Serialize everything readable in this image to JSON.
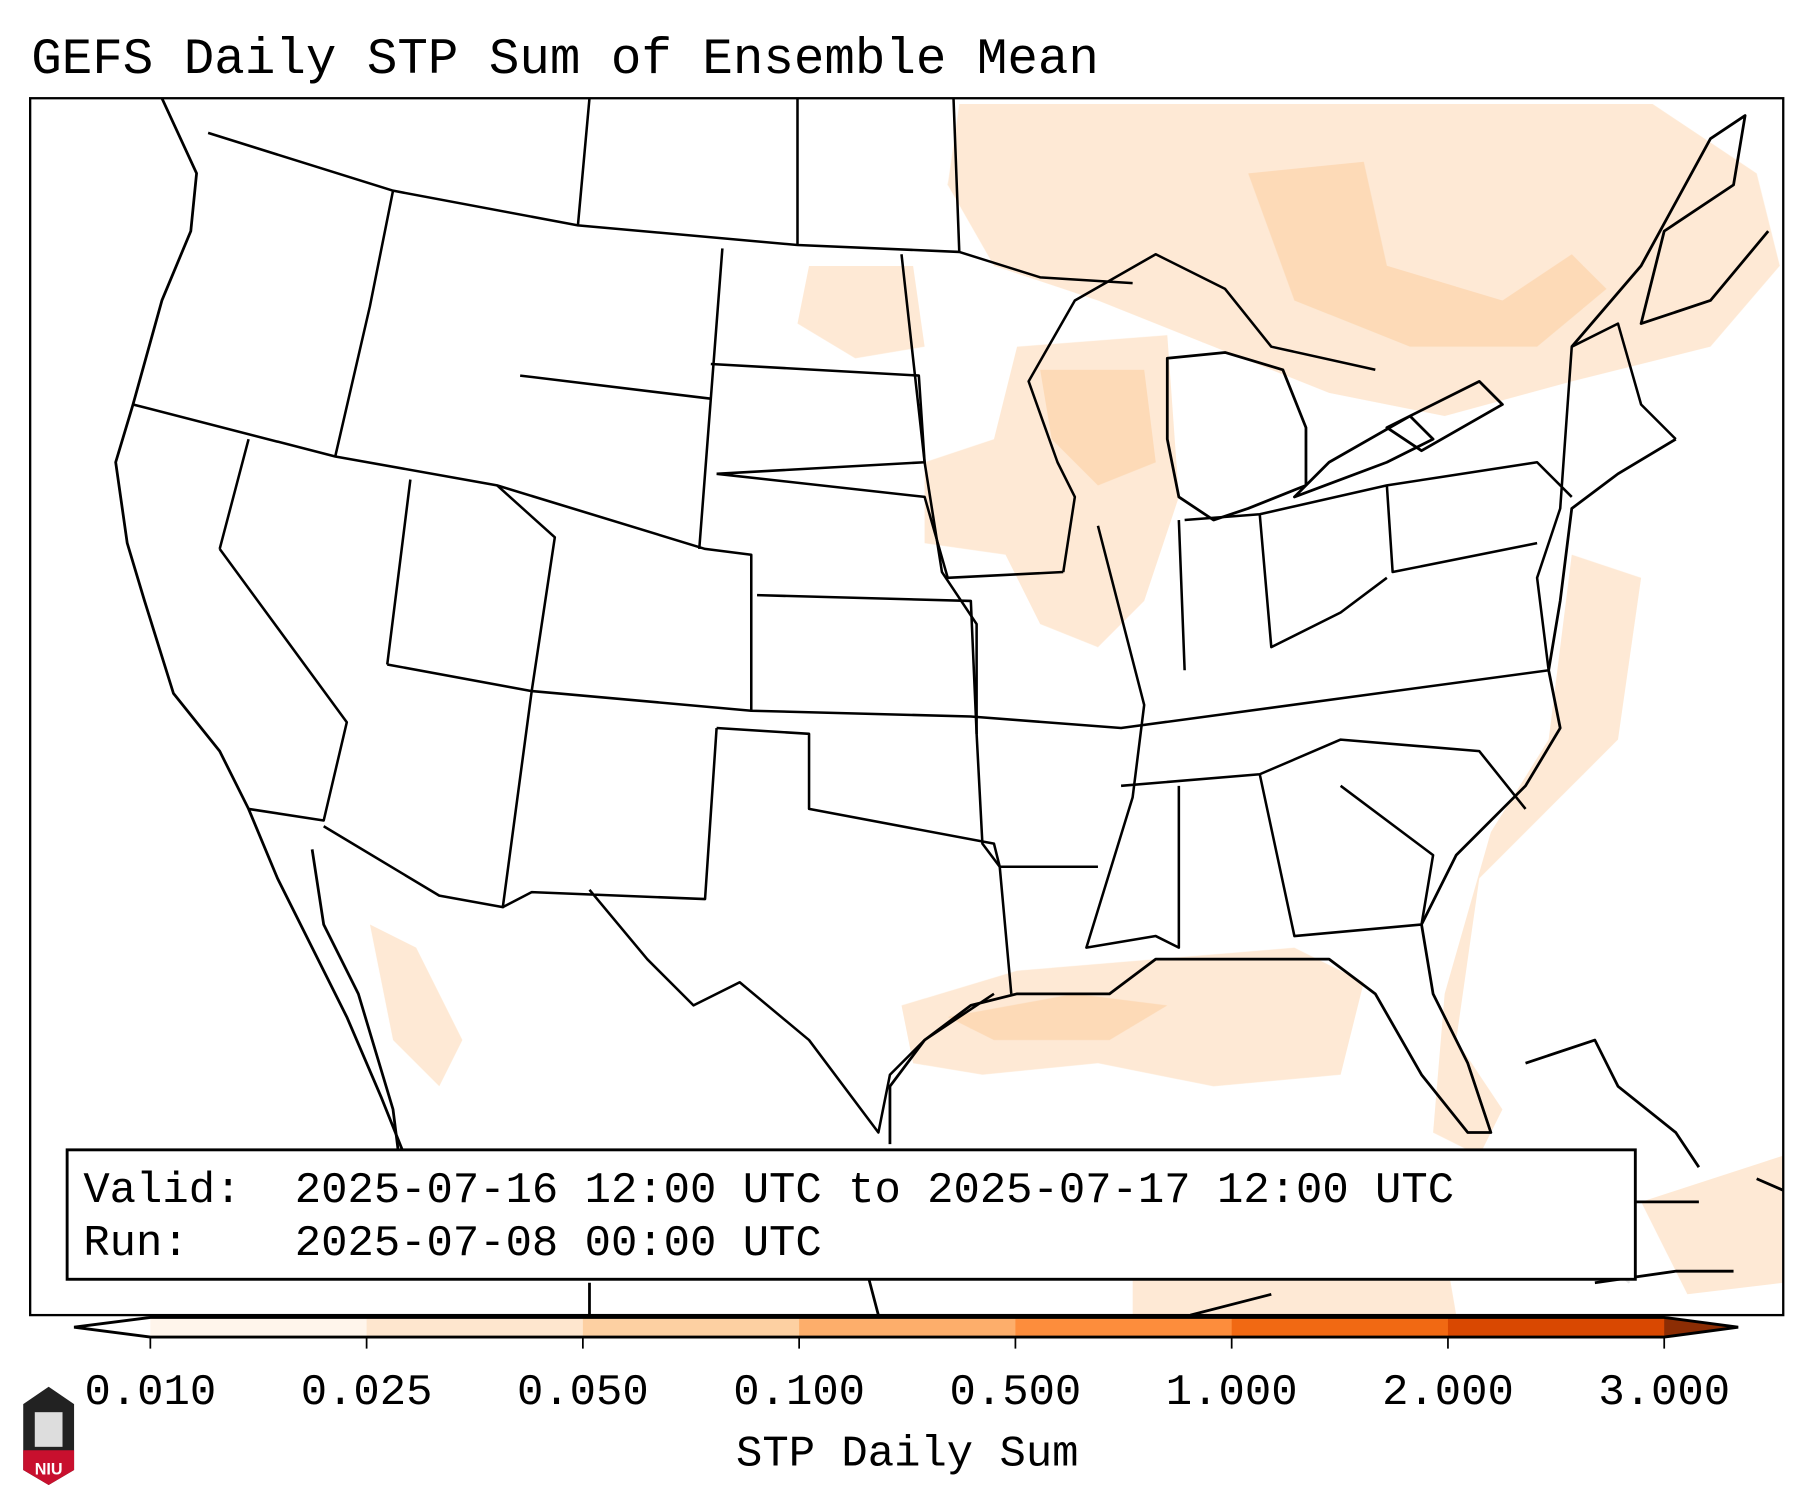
{
  "title": "GEFS Daily STP Sum of Ensemble Mean",
  "info_box": {
    "valid_label": "Valid:",
    "valid_value": "2025-07-16 12:00 UTC to 2025-07-17 12:00 UTC",
    "run_label": "Run:",
    "run_value": "2025-07-08 00:00 UTC"
  },
  "colorbar": {
    "label": "STP Daily Sum",
    "ticks": [
      "0.010",
      "0.025",
      "0.050",
      "0.100",
      "0.500",
      "1.000",
      "2.000",
      "3.000"
    ],
    "colors": [
      "#fff5eb",
      "#fee6ce",
      "#fdd0a2",
      "#fdae6b",
      "#fd8d3c",
      "#f16913",
      "#d94801"
    ],
    "under_color": "#ffffff",
    "over_color": "#8c2d04"
  },
  "logo": {
    "text": "NIU"
  }
}
